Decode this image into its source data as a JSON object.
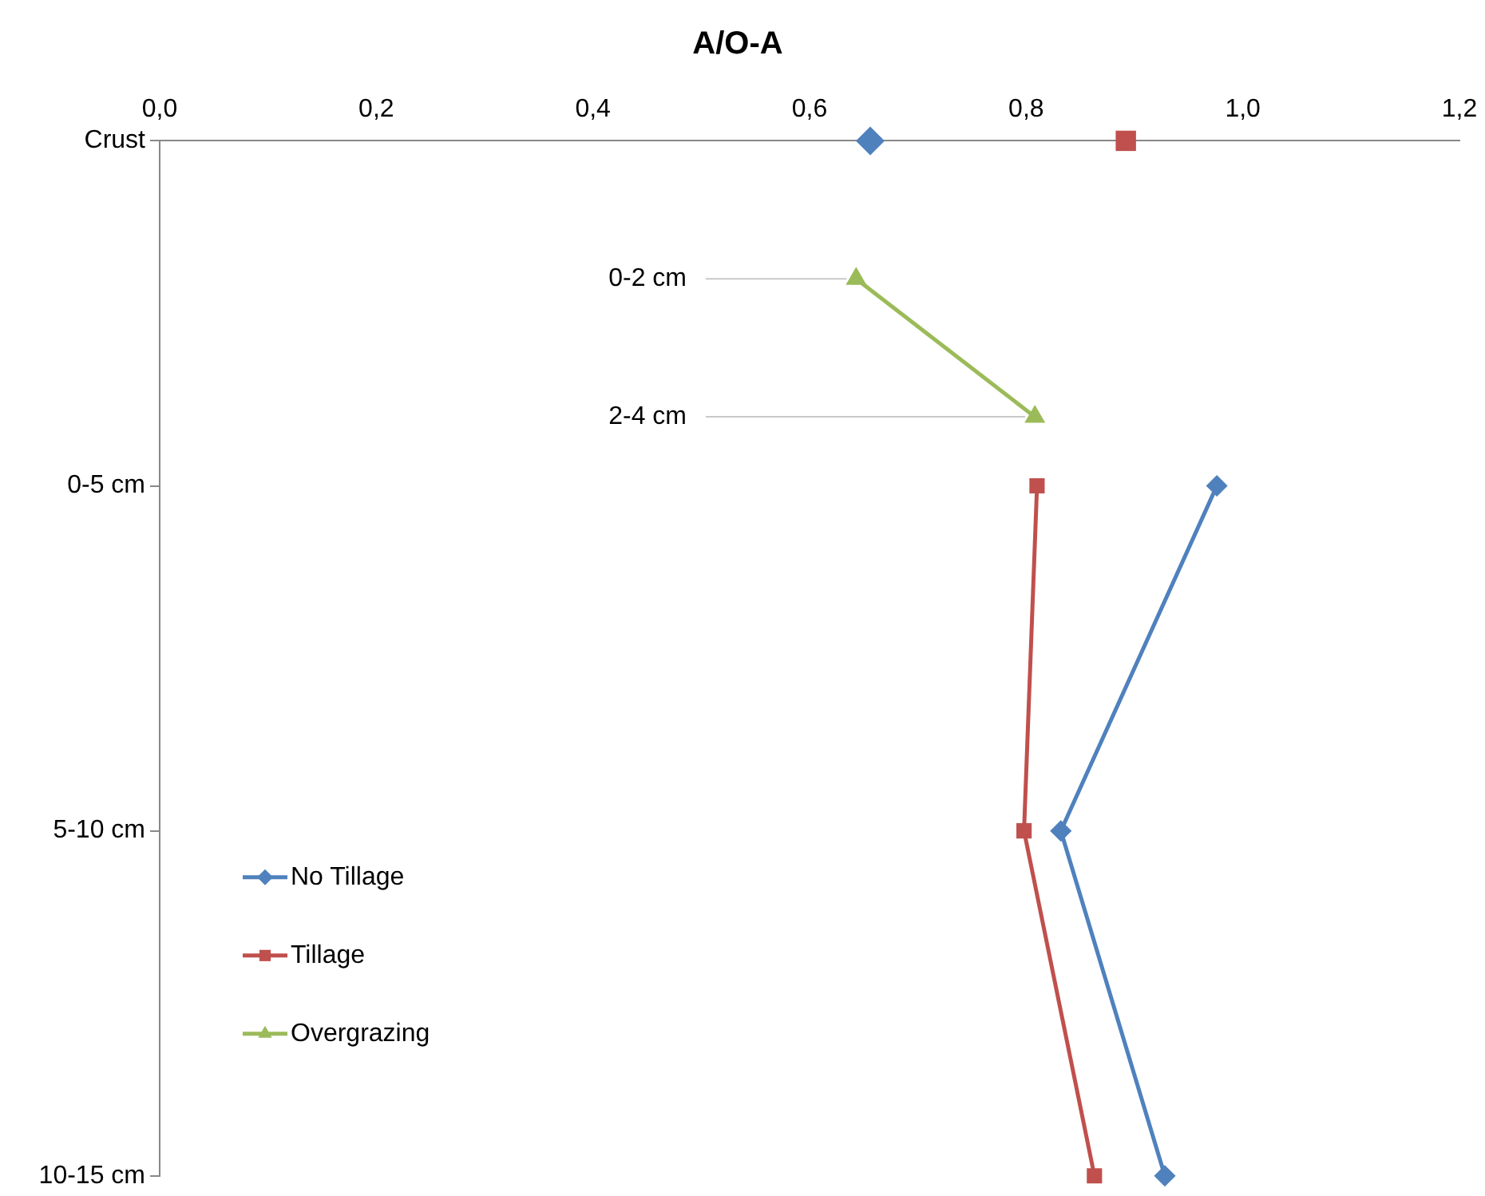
{
  "chart_data": {
    "type": "line",
    "title": "A/O-A",
    "orientation": "horizontal",
    "categories": [
      "Crust",
      null,
      null,
      null,
      null,
      "0-5 cm",
      null,
      null,
      null,
      null,
      "5-10 cm",
      null,
      null,
      null,
      null,
      "10-15 cm"
    ],
    "xlim": [
      0,
      1.2
    ],
    "xticks": [
      {
        "value": 0,
        "label": "0,0"
      },
      {
        "value": 0.2,
        "label": "0,2"
      },
      {
        "value": 0.4,
        "label": "0,4"
      },
      {
        "value": 0.6,
        "label": "0,6"
      },
      {
        "value": 0.8,
        "label": "0,8"
      },
      {
        "value": 1.0,
        "label": "1,0"
      },
      {
        "value": 1.2,
        "label": "1,2"
      }
    ],
    "series": [
      {
        "name": "No Tillage",
        "color": "#4f81bd",
        "marker": "diamond",
        "values": [
          null,
          null,
          null,
          null,
          null,
          0.976,
          null,
          null,
          null,
          null,
          0.832,
          null,
          null,
          null,
          null,
          0.928
        ]
      },
      {
        "name": "Tillage",
        "color": "#c0504d",
        "marker": "square",
        "values": [
          null,
          null,
          null,
          null,
          null,
          0.81,
          null,
          null,
          null,
          null,
          0.798,
          null,
          null,
          null,
          null,
          0.863
        ]
      },
      {
        "name": "Overgrazing",
        "color": "#9bbb59",
        "marker": "triangle",
        "values": [
          null,
          null,
          0.643,
          null,
          0.808,
          null,
          null,
          null,
          null,
          null,
          null,
          null,
          null,
          null,
          null,
          null
        ]
      },
      {
        "type": "scatter",
        "color": "#4f81bd",
        "marker": "diamond",
        "values": [
          0.656,
          null,
          null,
          null,
          null,
          null,
          null,
          null,
          null,
          null,
          null,
          null,
          null,
          null,
          null,
          null
        ]
      },
      {
        "type": "scatter",
        "color": "#c0504d",
        "marker": "square",
        "values": [
          0.892,
          null,
          null,
          null,
          null,
          null,
          null,
          null,
          null,
          null,
          null,
          null,
          null,
          null,
          null,
          null
        ]
      }
    ],
    "annotations": [
      {
        "text": "0-2 cm",
        "x": 0.643
      },
      {
        "text": "2-4 cm",
        "x": 0.808
      }
    ],
    "legend": "bottom left",
    "grid": false
  }
}
